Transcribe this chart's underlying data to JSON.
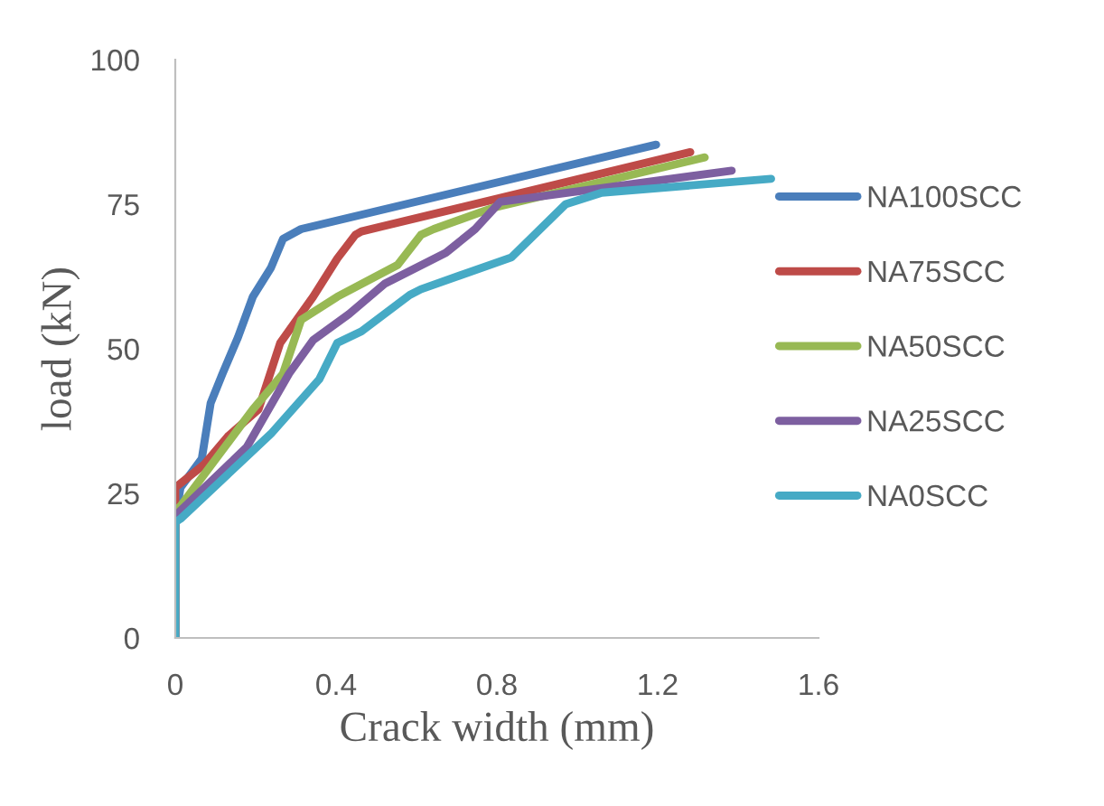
{
  "chart_data": {
    "type": "line",
    "xlabel": "Crack width (mm)",
    "ylabel": "load (kN)",
    "xlim": [
      0,
      1.6
    ],
    "ylim": [
      0,
      100
    ],
    "xticks": [
      0,
      0.4,
      0.8,
      1.2,
      1.6
    ],
    "yticks": [
      0,
      25,
      50,
      75,
      100
    ],
    "grid": false,
    "legend": "right",
    "marker": "none",
    "line_style": "solid",
    "series": [
      {
        "name": "NA100SCC",
        "color": "#4a7ebb",
        "x": [
          0,
          0,
          0.013,
          0.066,
          0.088,
          0.117,
          0.156,
          0.193,
          0.238,
          0.268,
          0.313,
          1.196
        ],
        "values": [
          0,
          20.6,
          26,
          31,
          40.6,
          45.6,
          52,
          59,
          64,
          69,
          70.7,
          85.3
        ]
      },
      {
        "name": "NA75SCC",
        "color": "#be4b48",
        "x": [
          0,
          0,
          0.072,
          0.133,
          0.207,
          0.261,
          0.343,
          0.403,
          0.448,
          0.463,
          1.281
        ],
        "values": [
          0,
          26,
          30,
          35,
          39.5,
          51,
          59,
          65.6,
          69.7,
          70.3,
          84
        ]
      },
      {
        "name": "NA50SCC",
        "color": "#98b954",
        "x": [
          0,
          0,
          0.013,
          0.193,
          0.268,
          0.313,
          0.403,
          0.553,
          0.611,
          0.643,
          0.791,
          1.317
        ],
        "values": [
          0,
          22,
          22.8,
          39.5,
          45.7,
          55,
          59,
          64.5,
          69.7,
          70.7,
          74.4,
          83.1
        ]
      },
      {
        "name": "NA25SCC",
        "color": "#7d5fa0",
        "x": [
          0,
          0,
          0.013,
          0.178,
          0.283,
          0.343,
          0.432,
          0.522,
          0.673,
          0.746,
          0.808,
          1.384
        ],
        "values": [
          0,
          21,
          22,
          33,
          45.7,
          51.5,
          56,
          61.3,
          66.6,
          70.7,
          75.4,
          80.8
        ]
      },
      {
        "name": "NA0SCC",
        "color": "#46aac5",
        "x": [
          0,
          0,
          0.013,
          0.238,
          0.358,
          0.403,
          0.463,
          0.583,
          0.611,
          0.836,
          0.971,
          1.061,
          1.482
        ],
        "values": [
          0,
          20,
          20.6,
          35.3,
          44.7,
          51,
          53,
          59.3,
          60.3,
          65.8,
          75,
          77,
          79.4
        ]
      }
    ]
  }
}
